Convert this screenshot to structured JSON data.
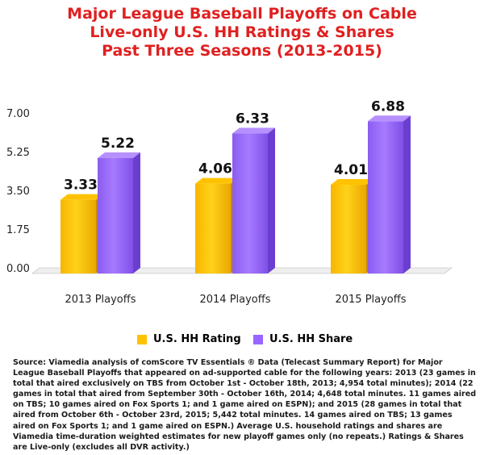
{
  "title_lines": [
    "Major League Baseball Playoffs on Cable",
    "Live-only U.S. HH Ratings & Shares",
    "Past Three Seasons (2013-2015)"
  ],
  "colors": {
    "title": "#e02020",
    "rating": "#ffc200",
    "share": "#9966ff"
  },
  "chart_data": {
    "type": "bar",
    "categories": [
      "2013 Playoffs",
      "2014 Playoffs",
      "2015 Playoffs"
    ],
    "series": [
      {
        "name": "U.S. HH Rating",
        "values": [
          3.33,
          4.06,
          4.01
        ]
      },
      {
        "name": "U.S. HH Share",
        "values": [
          5.22,
          6.33,
          6.88
        ]
      }
    ],
    "yticks": [
      "7.00",
      "5.25",
      "3.50",
      "1.75",
      "0.00"
    ],
    "ylim": [
      0,
      7
    ],
    "grid": false,
    "legend": "bottom"
  },
  "legend": {
    "rating_label": "U.S. HH Rating",
    "share_label": "U.S. HH Share"
  },
  "source_text": "Source: Viamedia analysis of comScore TV Essentials ® Data (Telecast Summary Report) for Major League Baseball Playoffs that appeared on ad-supported cable for the following years: 2013 (23 games in total that aired exclusively on TBS from October 1st - October 18th, 2013; 4,954 total minutes); 2014 (22 games in total that aired from September 30th - October 16th, 2014; 4,648 total minutes. 11 games aired on TBS; 10 games aired on Fox Sports 1; and 1 game aired on ESPN); and 2015 (28 games in total that aired from October 6th - October 23rd, 2015; 5,442 total minutes. 14 games aired on TBS; 13 games aired on Fox Sports 1; and 1 game aired on ESPN.) Average U.S. household ratings and shares are Viamedia time-duration weighted estimates for new playoff games only (no repeats.) Ratings & Shares are Live-only (excludes all DVR activity.)"
}
